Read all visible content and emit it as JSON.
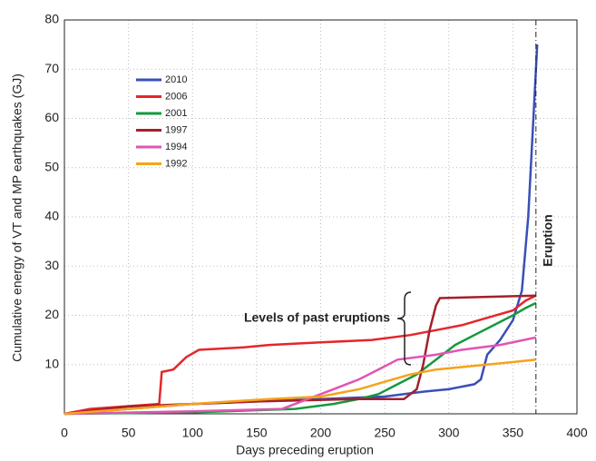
{
  "chart_data": {
    "type": "line",
    "xlabel": "Days preceding eruption",
    "ylabel": "Cumulative energy of VT and MP earthquakes (GJ)",
    "xlim": [
      0,
      400
    ],
    "ylim": [
      0,
      80
    ],
    "xticks": [
      0,
      50,
      100,
      150,
      200,
      250,
      300,
      350,
      400
    ],
    "yticks": [
      10,
      20,
      30,
      40,
      50,
      60,
      70,
      80
    ],
    "grid": true,
    "legend": "upper left",
    "annotations": [
      {
        "text": "Eruption",
        "x": 368
      },
      {
        "text": "Levels of past eruptions"
      }
    ],
    "series": [
      {
        "name": "2010",
        "color": "#3a4fb8",
        "x": [
          0,
          50,
          100,
          150,
          200,
          250,
          280,
          300,
          320,
          325,
          330,
          340,
          350,
          357,
          362,
          366,
          369
        ],
        "values": [
          0,
          1,
          2,
          2.5,
          3,
          3.5,
          4.5,
          5,
          6,
          7,
          12,
          15,
          19,
          25,
          40,
          60,
          75
        ]
      },
      {
        "name": "2006",
        "color": "#e5262b",
        "x": [
          0,
          20,
          74,
          76,
          85,
          95,
          105,
          140,
          160,
          200,
          240,
          270,
          290,
          310,
          330,
          350,
          360,
          368
        ],
        "values": [
          0,
          1,
          2,
          8.5,
          9,
          11.5,
          13,
          13.5,
          14,
          14.5,
          15,
          16,
          17,
          18,
          19.5,
          21,
          23,
          24
        ]
      },
      {
        "name": "2001",
        "color": "#139a3c",
        "x": [
          0,
          100,
          180,
          210,
          230,
          245,
          260,
          275,
          285,
          295,
          305,
          320,
          335,
          350,
          360,
          368
        ],
        "values": [
          0,
          0.3,
          1,
          2,
          3,
          4,
          6,
          8,
          10,
          12,
          14,
          16,
          18,
          20,
          21.5,
          22.5
        ]
      },
      {
        "name": "1997",
        "color": "#a3202a",
        "x": [
          0,
          50,
          100,
          150,
          230,
          265,
          275,
          280,
          285,
          290,
          293,
          368
        ],
        "values": [
          0,
          1.5,
          2,
          2.5,
          3,
          3,
          5,
          10,
          17,
          22,
          23.5,
          24
        ]
      },
      {
        "name": "1994",
        "color": "#e055b4",
        "x": [
          0,
          100,
          170,
          190,
          210,
          230,
          245,
          260,
          290,
          310,
          340,
          368
        ],
        "values": [
          0,
          0.5,
          1,
          3,
          5,
          7,
          9,
          11,
          12,
          13,
          14,
          15.5
        ]
      },
      {
        "name": "1992",
        "color": "#f5a31b",
        "x": [
          0,
          50,
          100,
          130,
          160,
          200,
          230,
          250,
          270,
          290,
          310,
          330,
          350,
          368
        ],
        "values": [
          0,
          1,
          2,
          2.5,
          3,
          3.5,
          5,
          6.5,
          8,
          9,
          9.5,
          10,
          10.5,
          11
        ]
      }
    ]
  }
}
